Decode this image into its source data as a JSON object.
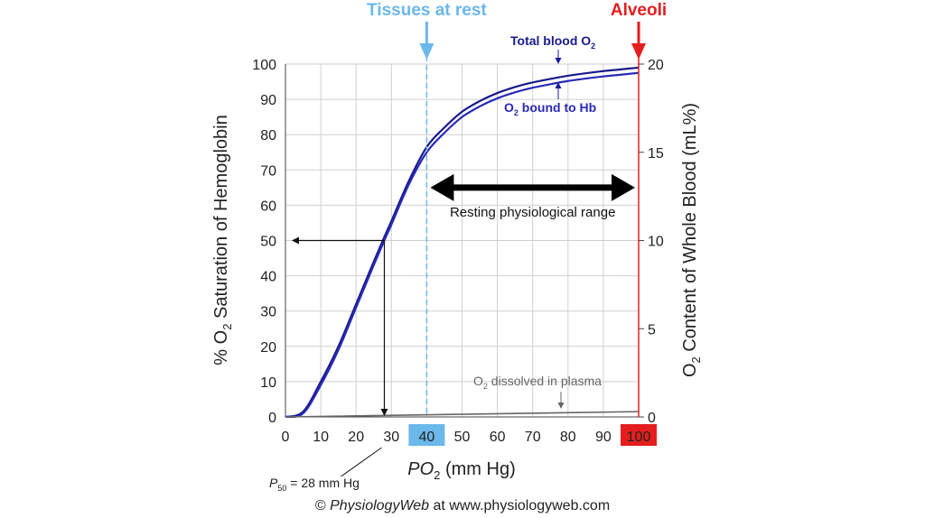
{
  "chart_data": {
    "type": "line",
    "x_axis": {
      "label_prefix": "PO",
      "label_sub": "2",
      "label_suffix": " (mm Hg)",
      "range": [
        0,
        100
      ],
      "ticks": [
        0,
        10,
        20,
        30,
        40,
        50,
        60,
        70,
        80,
        90,
        100
      ],
      "highlight_ticks": [
        {
          "value": 40,
          "color": "#6bb8ea"
        },
        {
          "value": 100,
          "color": "#e41e1e"
        }
      ]
    },
    "y_left": {
      "label_prefix": "% O",
      "label_sub": "2",
      "label_suffix": " Saturation of Hemoglobin",
      "range": [
        0,
        100
      ],
      "ticks": [
        0,
        10,
        20,
        30,
        40,
        50,
        60,
        70,
        80,
        90,
        100
      ]
    },
    "y_right": {
      "label_prefix": "O",
      "label_sub": "2",
      "label_suffix": " Content of Whole Blood (mL%)",
      "range": [
        0,
        20
      ],
      "ticks": [
        0,
        5,
        10,
        15,
        20
      ]
    },
    "grid": true,
    "series": [
      {
        "name_prefix": "Total blood O",
        "name_sub": "2",
        "name_suffix": "",
        "color": "#1a1a8c",
        "x": [
          0,
          5,
          10,
          15,
          20,
          25,
          28,
          30,
          35,
          40,
          45,
          50,
          55,
          60,
          65,
          70,
          75,
          80,
          85,
          90,
          95,
          100
        ],
        "y": [
          0,
          1.5,
          10,
          20,
          32,
          44,
          51,
          55.5,
          67,
          76.5,
          82,
          86.5,
          89.5,
          91.8,
          93.5,
          94.8,
          95.8,
          96.7,
          97.4,
          98,
          98.5,
          99
        ]
      },
      {
        "name_prefix": "O",
        "name_sub": "2",
        "name_suffix": " bound to Hb",
        "color": "#2a2ab8",
        "x": [
          0,
          5,
          10,
          15,
          20,
          25,
          28,
          30,
          35,
          40,
          45,
          50,
          55,
          60,
          65,
          70,
          75,
          80,
          85,
          90,
          95,
          100
        ],
        "y": [
          0,
          1,
          9,
          19,
          31,
          43,
          50,
          54.5,
          66,
          75,
          80.5,
          85,
          88,
          90.3,
          92,
          93.3,
          94.3,
          95.2,
          95.9,
          96.5,
          97,
          97.5
        ]
      },
      {
        "name_prefix": "O",
        "name_sub": "2",
        "name_suffix": " dissolved in plasma",
        "color": "#666666",
        "x": [
          0,
          100
        ],
        "y": [
          0,
          1.5
        ]
      }
    ],
    "reference_lines": [
      {
        "x": 40,
        "label": "Tissues at rest",
        "color": "#6bb8ea"
      },
      {
        "x": 100,
        "label": "Alveoli",
        "color": "#e41e1e"
      }
    ],
    "p50": {
      "x": 28,
      "y": 50,
      "label_prefix": "P",
      "label_sub": "50",
      "label_suffix": " = 28 mm Hg"
    },
    "range_annotation": {
      "from": 40,
      "to": 100,
      "y": 65,
      "label": "Resting physiological range"
    }
  },
  "credit": {
    "prefix": "© ",
    "brand": "PhysiologyWeb",
    "suffix": " at www.physiologyweb.com"
  }
}
